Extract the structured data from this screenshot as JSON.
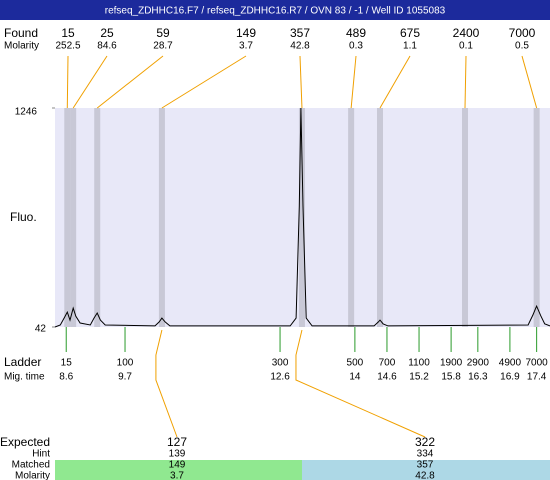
{
  "header": {
    "title": "refseq_ZDHHC16.F7 / refseq_ZDHHC16.R7 / OVN 83 / -1 / Well ID 1055083"
  },
  "chart_data": {
    "type": "electropherogram",
    "y_label": "Fluo.",
    "ylim": [
      42,
      1246
    ],
    "yticks": [
      42,
      1246
    ],
    "xlim": [
      8.39,
      17.65
    ],
    "found": {
      "label": "Found",
      "molarity_label": "Molarity",
      "sizes": [
        15,
        25,
        59,
        149,
        357,
        489,
        675,
        2400,
        7000
      ],
      "molarity": [
        252.5,
        84.6,
        28.7,
        3.7,
        42.8,
        0.3,
        1.1,
        0.1,
        0.5
      ],
      "times": [
        8.62,
        8.73,
        9.18,
        10.39,
        13.01,
        13.93,
        14.47,
        16.06,
        17.4
      ]
    },
    "trace": {
      "x": [
        8.39,
        8.49,
        8.56,
        8.62,
        8.67,
        8.73,
        8.78,
        8.86,
        9.05,
        9.12,
        9.18,
        9.24,
        9.33,
        10.26,
        10.34,
        10.39,
        10.45,
        10.54,
        12.79,
        12.9,
        12.96,
        12.99,
        13.03,
        13.09,
        13.2,
        14.36,
        14.44,
        14.47,
        14.53,
        14.62,
        17.24,
        17.33,
        17.4,
        17.48,
        17.55,
        17.65
      ],
      "values": [
        42,
        53,
        91,
        124,
        80,
        146,
        102,
        64,
        53,
        91,
        119,
        80,
        53,
        48,
        70,
        91,
        70,
        48,
        48,
        91,
        706,
        1246,
        706,
        91,
        48,
        48,
        70,
        80,
        59,
        48,
        53,
        108,
        157,
        102,
        59,
        48
      ]
    },
    "ladder": {
      "label": "Ladder",
      "time_label": "Mig. time",
      "sizes": [
        15,
        100,
        300,
        500,
        700,
        1100,
        1900,
        2900,
        4900,
        7000
      ],
      "times": [
        8.6,
        9.7,
        12.6,
        14,
        14.6,
        15.2,
        15.8,
        16.3,
        16.9,
        17.4
      ]
    },
    "expected": {
      "label": "Expected",
      "hint_label": "Hint",
      "matched_label": "Matched",
      "molarity_label": "Molarity",
      "sizes": [
        127,
        322
      ],
      "hints": [
        139,
        334
      ],
      "matched": [
        149,
        357
      ],
      "molarity": [
        3.7,
        42.8
      ]
    }
  }
}
